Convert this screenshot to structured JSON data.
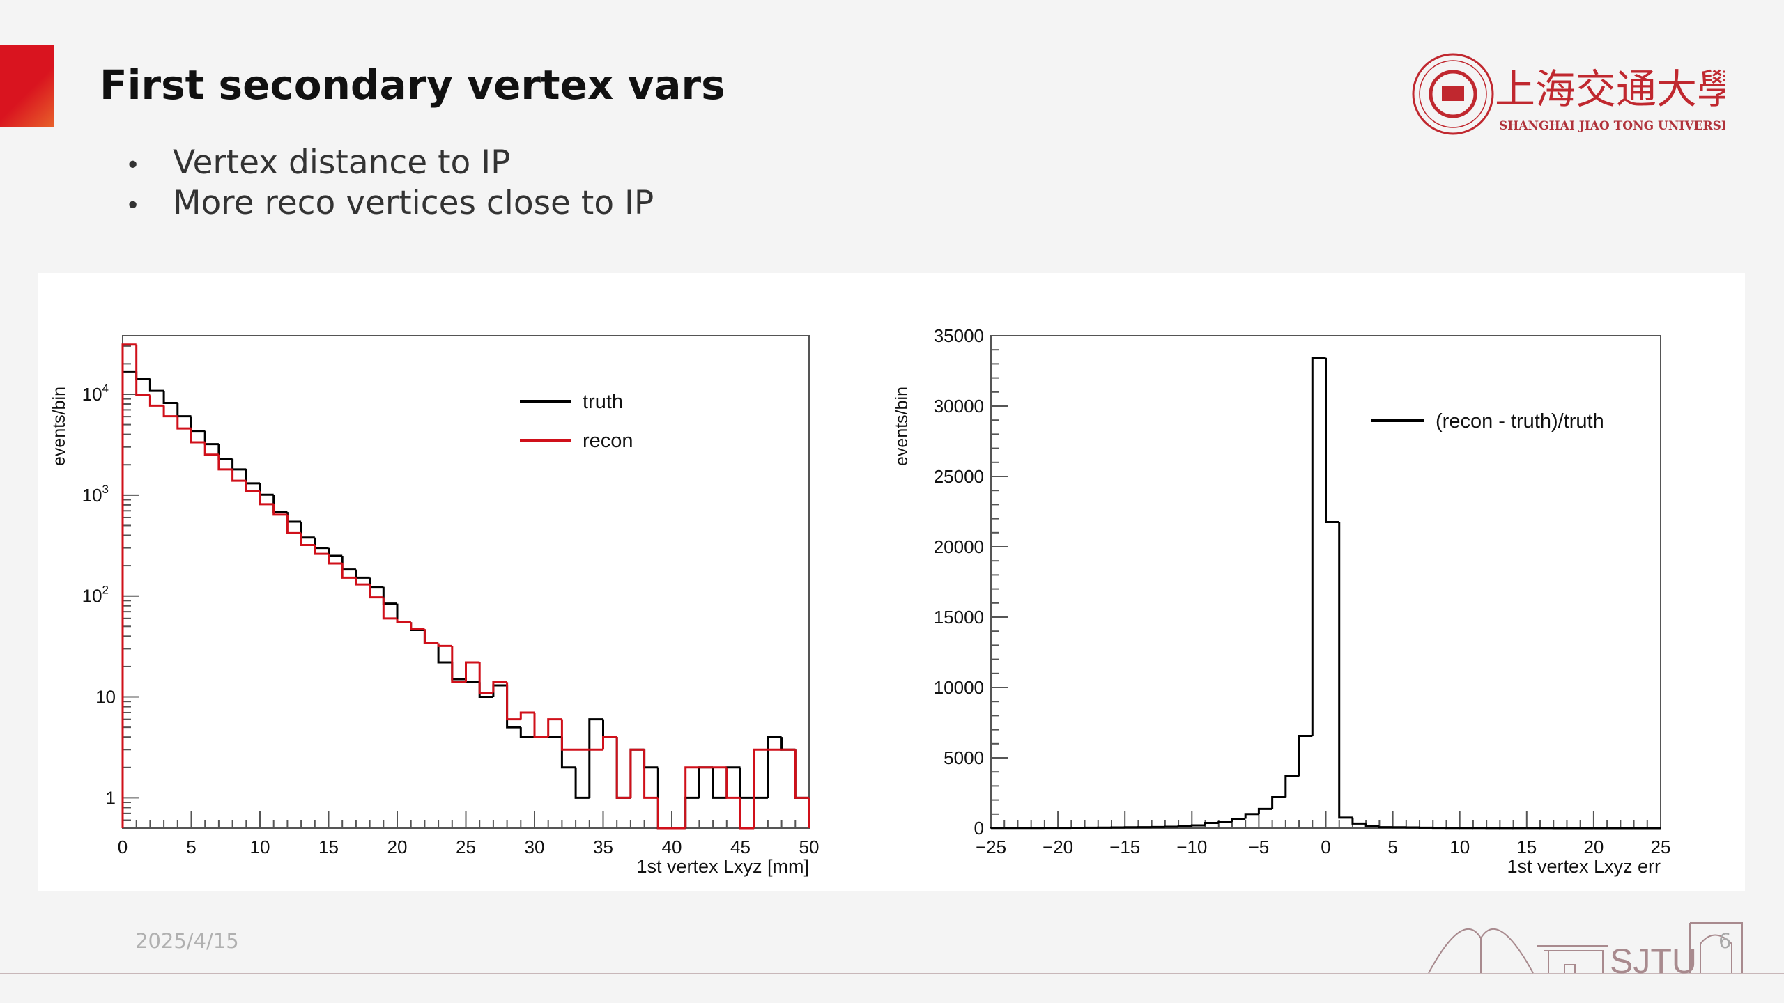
{
  "slide": {
    "title": "First secondary vertex vars",
    "bullets": [
      "Vertex distance to IP",
      "More reco vertices close to IP"
    ],
    "date": "2025/4/15",
    "page_number": "6",
    "logo": {
      "chinese": "上海交通大學",
      "english": "SHANGHAI JIAO TONG UNIVERSITY",
      "footer_mark": "SJTU"
    },
    "accent_color": "#d9141f"
  },
  "chart_data": [
    {
      "type": "histogram",
      "xlabel": "1st vertex Lxyz [mm]",
      "ylabel": "events/bin",
      "xlim": [
        0,
        50
      ],
      "ylim": [
        0.5,
        38000
      ],
      "yscale": "log",
      "bin_edges_start": 0,
      "bin_width": 1,
      "x_ticks": [
        "0",
        "5",
        "10",
        "15",
        "20",
        "25",
        "30",
        "35",
        "40",
        "45",
        "50"
      ],
      "y_ticks": [
        {
          "value": 1,
          "label": "1"
        },
        {
          "value": 10,
          "label": "10"
        },
        {
          "value": 100,
          "label": "10",
          "exp": "2"
        },
        {
          "value": 1000,
          "label": "10",
          "exp": "3"
        },
        {
          "value": 10000,
          "label": "10",
          "exp": "4"
        }
      ],
      "legend_position": "top-right",
      "series": [
        {
          "name": "truth",
          "color": "#000000",
          "values": [
            16800,
            14300,
            10800,
            8200,
            6050,
            4330,
            3200,
            2290,
            1800,
            1310,
            1010,
            680,
            545,
            380,
            300,
            250,
            183,
            152,
            123,
            84,
            55,
            46,
            34,
            22,
            15,
            14,
            10,
            13,
            5,
            4,
            4,
            4,
            2,
            1,
            6,
            4,
            1,
            3,
            2,
            0,
            0,
            1,
            2,
            1,
            2,
            1,
            1,
            4,
            3,
            1
          ]
        },
        {
          "name": "recon",
          "color": "#d0101a",
          "values": [
            31000,
            9800,
            7700,
            6050,
            4580,
            3340,
            2520,
            1800,
            1390,
            1090,
            813,
            640,
            420,
            320,
            262,
            210,
            152,
            130,
            97,
            60,
            55,
            47,
            34,
            32,
            14,
            22,
            11,
            14,
            6,
            7,
            4,
            6,
            3,
            3,
            3,
            4,
            1,
            3,
            1,
            0,
            0,
            2,
            2,
            2,
            1,
            0,
            3,
            3,
            3,
            1
          ]
        }
      ]
    },
    {
      "type": "histogram",
      "xlabel": "1st vertex Lxyz err",
      "ylabel": "events/bin",
      "xlim": [
        -25,
        25
      ],
      "ylim": [
        0,
        35000
      ],
      "yscale": "linear",
      "bin_edges_start": -25,
      "bin_width": 1,
      "x_ticks": [
        "−25",
        "−20",
        "−15",
        "−10",
        "−5",
        "0",
        "5",
        "10",
        "15",
        "20",
        "25"
      ],
      "y_ticks": [
        {
          "value": 0,
          "label": "0"
        },
        {
          "value": 5000,
          "label": "5000"
        },
        {
          "value": 10000,
          "label": "10000"
        },
        {
          "value": 15000,
          "label": "15000"
        },
        {
          "value": 20000,
          "label": "20000"
        },
        {
          "value": 25000,
          "label": "25000"
        },
        {
          "value": 30000,
          "label": "30000"
        },
        {
          "value": 35000,
          "label": "35000"
        }
      ],
      "legend_position": "top-right",
      "series": [
        {
          "name": "(recon - truth)/truth",
          "color": "#000000",
          "values": [
            10,
            10,
            15,
            15,
            20,
            20,
            25,
            30,
            40,
            50,
            60,
            70,
            80,
            100,
            150,
            200,
            370,
            450,
            670,
            1000,
            1370,
            2200,
            3690,
            6560,
            33430,
            21760,
            750,
            325,
            125,
            70,
            60,
            50,
            30,
            20,
            15,
            12,
            10,
            8,
            6,
            5,
            5,
            4,
            3,
            3,
            2,
            2,
            2,
            1,
            1,
            1
          ]
        }
      ]
    }
  ]
}
